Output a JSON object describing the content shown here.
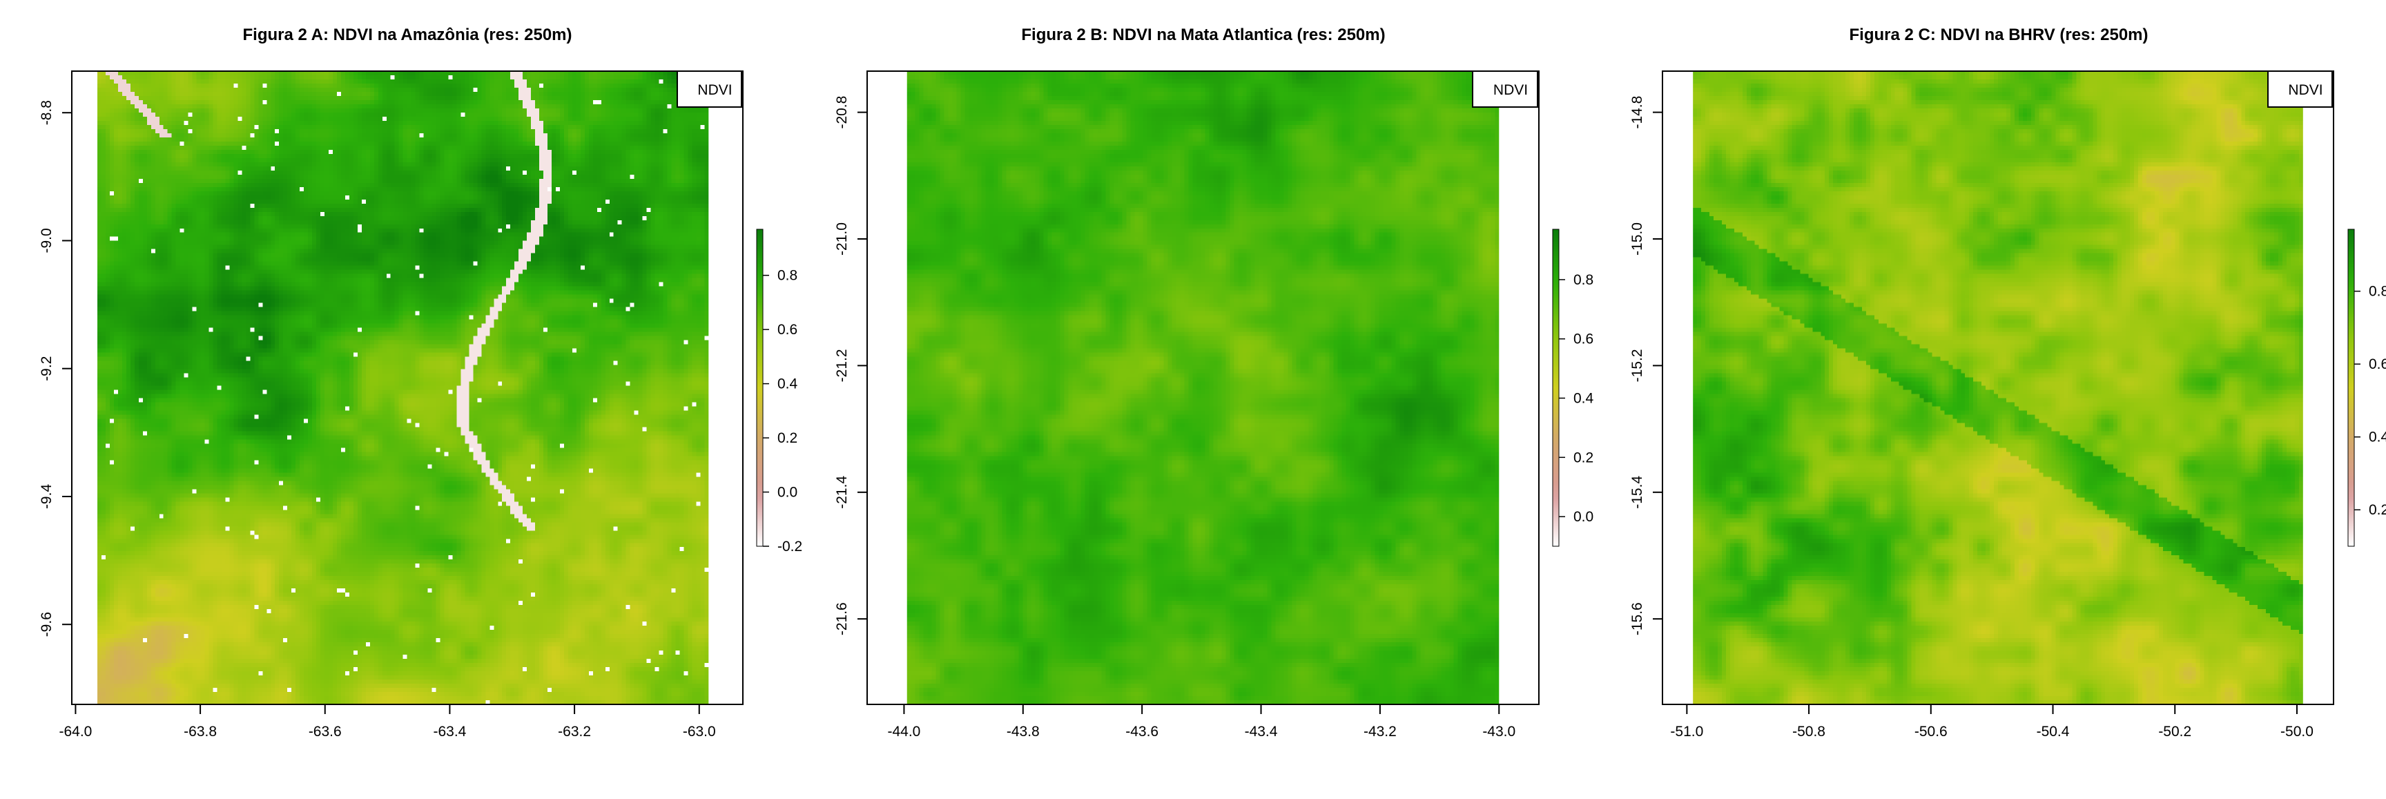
{
  "chart_data": [
    {
      "type": "heatmap",
      "title": "Figura 2 A: NDVI na Amazônia (res: 250m)",
      "legend_label": "NDVI",
      "legend_position": "top-right",
      "x_ticks": [
        "-64.0",
        "-63.8",
        "-63.6",
        "-63.4",
        "-63.2",
        "-63.0"
      ],
      "x_tick_values": [
        -64.0,
        -63.8,
        -63.6,
        -63.4,
        -63.2,
        -63.0
      ],
      "y_ticks": [
        "-8.8",
        "-9.0",
        "-9.2",
        "-9.4",
        "-9.6"
      ],
      "y_tick_values": [
        -8.8,
        -9.0,
        -9.2,
        -9.4,
        -9.6
      ],
      "xlim": [
        -64.006,
        -62.93
      ],
      "ylim": [
        -9.725,
        -8.735
      ],
      "raster_extent": {
        "x": [
          -63.965,
          -62.985
        ],
        "y": [
          -9.725,
          -8.735
        ]
      },
      "colorbar_ticks": [
        "0.8",
        "0.6",
        "0.4",
        "0.2",
        "0.0",
        "-0.2"
      ],
      "colorbar_tick_values": [
        0.8,
        0.6,
        0.4,
        0.2,
        0.0,
        -0.2
      ],
      "colorbar_range": [
        -0.2,
        0.97
      ],
      "ndvi_summary": {
        "dominant": 0.8,
        "low_area_south": 0.35,
        "river_min": -0.15
      },
      "river": true
    },
    {
      "type": "heatmap",
      "title": "Figura 2 B: NDVI na Mata Atlantica (res: 250m)",
      "legend_label": "NDVI",
      "legend_position": "top-right",
      "x_ticks": [
        "-44.0",
        "-43.8",
        "-43.6",
        "-43.4",
        "-43.2",
        "-43.0"
      ],
      "x_tick_values": [
        -44.0,
        -43.8,
        -43.6,
        -43.4,
        -43.2,
        -43.0
      ],
      "y_ticks": [
        "-20.8",
        "-21.0",
        "-21.2",
        "-21.4",
        "-21.6"
      ],
      "y_tick_values": [
        -20.8,
        -21.0,
        -21.2,
        -21.4,
        -21.6
      ],
      "xlim": [
        -44.062,
        -42.933
      ],
      "ylim": [
        -21.735,
        -20.735
      ],
      "raster_extent": {
        "x": [
          -43.995,
          -43.0
        ],
        "y": [
          -21.735,
          -20.735
        ]
      },
      "colorbar_ticks": [
        "0.8",
        "0.6",
        "0.4",
        "0.2",
        "0.0"
      ],
      "colorbar_tick_values": [
        0.8,
        0.6,
        0.4,
        0.2,
        0.0
      ],
      "colorbar_range": [
        -0.1,
        0.97
      ],
      "ndvi_summary": {
        "dominant": 0.8,
        "min_visible": 0.5
      },
      "river": false
    },
    {
      "type": "heatmap",
      "title": "Figura 2 C: NDVI na BHRV (res: 250m)",
      "legend_label": "NDVI",
      "legend_position": "top-right",
      "x_ticks": [
        "-51.0",
        "-50.8",
        "-50.6",
        "-50.4",
        "-50.2",
        "-50.0"
      ],
      "x_tick_values": [
        -51.0,
        -50.8,
        -50.6,
        -50.4,
        -50.2,
        -50.0
      ],
      "y_ticks": [
        "-14.8",
        "-15.0",
        "-15.2",
        "-15.4",
        "-15.6"
      ],
      "y_tick_values": [
        -14.8,
        -15.0,
        -15.2,
        -15.4,
        -15.6
      ],
      "xlim": [
        -51.04,
        -49.94
      ],
      "ylim": [
        -15.735,
        -14.735
      ],
      "raster_extent": {
        "x": [
          -50.99,
          -49.99
        ],
        "y": [
          -15.735,
          -14.735
        ]
      },
      "colorbar_ticks": [
        "0.8",
        "0.6",
        "0.4",
        "0.2"
      ],
      "colorbar_tick_values": [
        0.8,
        0.6,
        0.4,
        0.2
      ],
      "colorbar_range": [
        0.1,
        0.97
      ],
      "ndvi_summary": {
        "dominant": 0.7,
        "min_visible": 0.3
      },
      "river": false
    }
  ],
  "ndvi_palette": [
    "#ffffff",
    "#d99a9a",
    "#d4a86a",
    "#cfcf1f",
    "#8cc60c",
    "#2cb00a",
    "#0b7d0b"
  ]
}
